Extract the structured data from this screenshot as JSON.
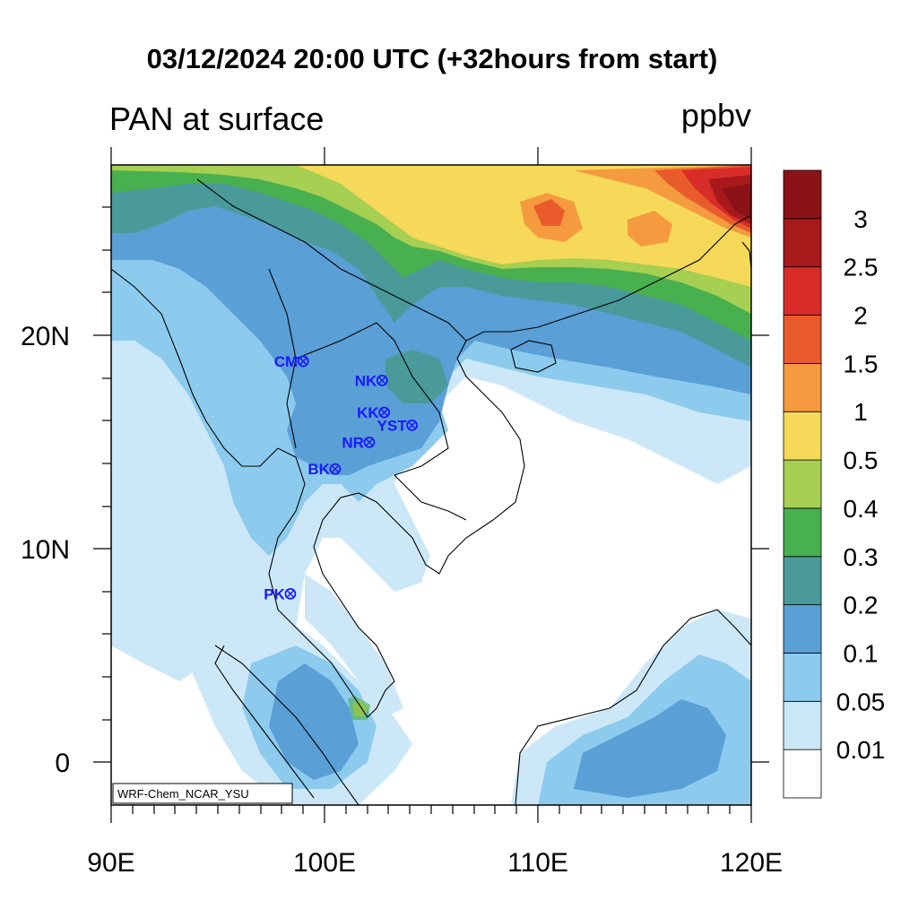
{
  "title": "03/12/2024 20:00 UTC (+32hours from start)",
  "variable": "PAN at surface",
  "units": "ppbv",
  "credit": "WRF-Chem_NCAR_YSU",
  "axes": {
    "x_ticks": [
      "90E",
      "100E",
      "110E",
      "120E"
    ],
    "y_ticks": [
      "20N",
      "10N",
      "0"
    ],
    "lon_range": [
      90,
      120
    ],
    "lat_range": [
      -2,
      28
    ]
  },
  "colorbar": {
    "labels": [
      "0.01",
      "0.05",
      "0.1",
      "0.2",
      "0.3",
      "0.4",
      "0.5",
      "1",
      "1.5",
      "2",
      "2.5",
      "3"
    ],
    "colors": [
      "#ffffff",
      "#cce8f8",
      "#8dcbee",
      "#5a9fd6",
      "#4a9a9a",
      "#49b050",
      "#a7cf52",
      "#f7d95a",
      "#f59a3f",
      "#ea5b2c",
      "#d72c28",
      "#a8191c",
      "#8b1216"
    ]
  },
  "stations": [
    {
      "name": "CM",
      "lon": 99.0,
      "lat": 18.8
    },
    {
      "name": "NK",
      "lon": 102.7,
      "lat": 17.9
    },
    {
      "name": "KK",
      "lon": 102.8,
      "lat": 16.4
    },
    {
      "name": "YST",
      "lon": 104.1,
      "lat": 15.8
    },
    {
      "name": "NR",
      "lon": 102.1,
      "lat": 15.0
    },
    {
      "name": "BK",
      "lon": 100.5,
      "lat": 13.75
    },
    {
      "name": "PK",
      "lon": 98.4,
      "lat": 7.9
    }
  ]
}
